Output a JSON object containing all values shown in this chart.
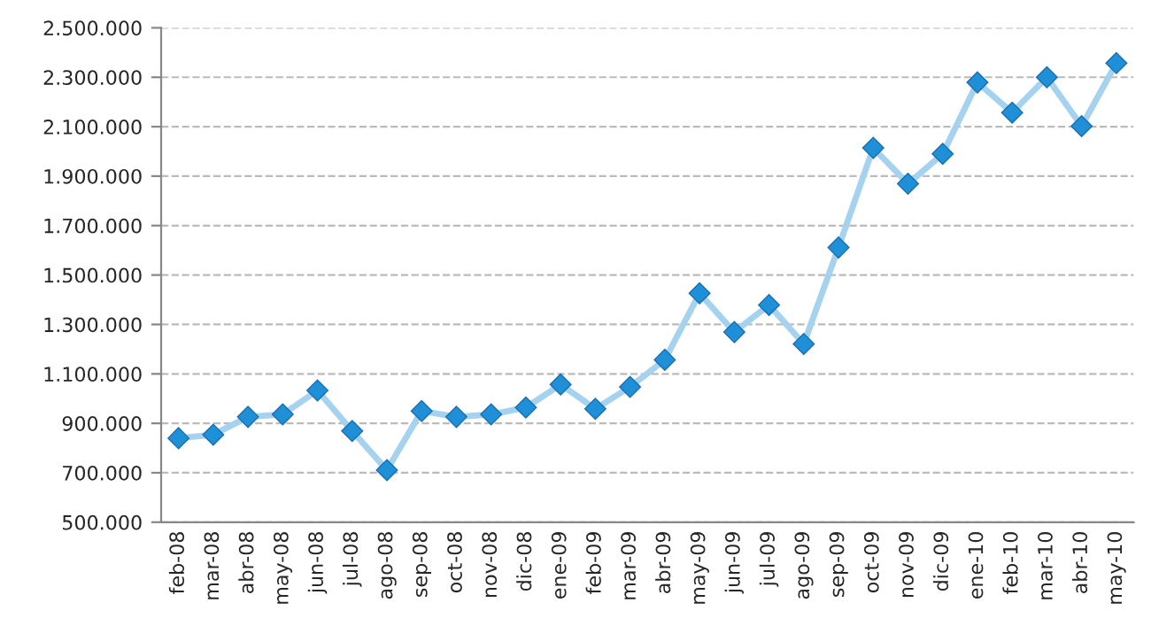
{
  "chart_data": {
    "type": "line",
    "categories": [
      "feb-08",
      "mar-08",
      "abr-08",
      "may-08",
      "jun-08",
      "jul-08",
      "ago-08",
      "sep-08",
      "oct-08",
      "nov-08",
      "dic-08",
      "ene-09",
      "feb-09",
      "mar-09",
      "abr-09",
      "may-09",
      "jun-09",
      "jul-09",
      "ago-09",
      "sep-09",
      "oct-09",
      "nov-09",
      "dic-09",
      "ene-10",
      "feb-10",
      "mar-10",
      "abr-10",
      "may-10"
    ],
    "series": [
      {
        "color": "#1f8fd8",
        "values": [
          840000,
          854000,
          926000,
          936000,
          1033000,
          869000,
          711000,
          950000,
          926000,
          936000,
          964000,
          1057000,
          959000,
          1047000,
          1157000,
          1426000,
          1269000,
          1379000,
          1221000,
          1611000,
          2014000,
          1869000,
          1990000,
          2279000,
          2157000,
          2300000,
          2102000,
          2357000
        ]
      }
    ],
    "ylim": [
      500000,
      2500000
    ],
    "yticks": [
      {
        "value": 500000,
        "label": "500.000"
      },
      {
        "value": 700000,
        "label": "700.000"
      },
      {
        "value": 900000,
        "label": "900.000"
      },
      {
        "value": 1100000,
        "label": "1.100.000"
      },
      {
        "value": 1300000,
        "label": "1.300.000"
      },
      {
        "value": 1500000,
        "label": "1.500.000"
      },
      {
        "value": 1700000,
        "label": "1.700.000"
      },
      {
        "value": 1900000,
        "label": "1.900.000"
      },
      {
        "value": 2100000,
        "label": "2.100.000"
      },
      {
        "value": 2300000,
        "label": "2.300.000"
      },
      {
        "value": 2500000,
        "label": "2.500.000"
      }
    ],
    "grid": "y",
    "marker": "diamond",
    "line_style": "solid"
  }
}
